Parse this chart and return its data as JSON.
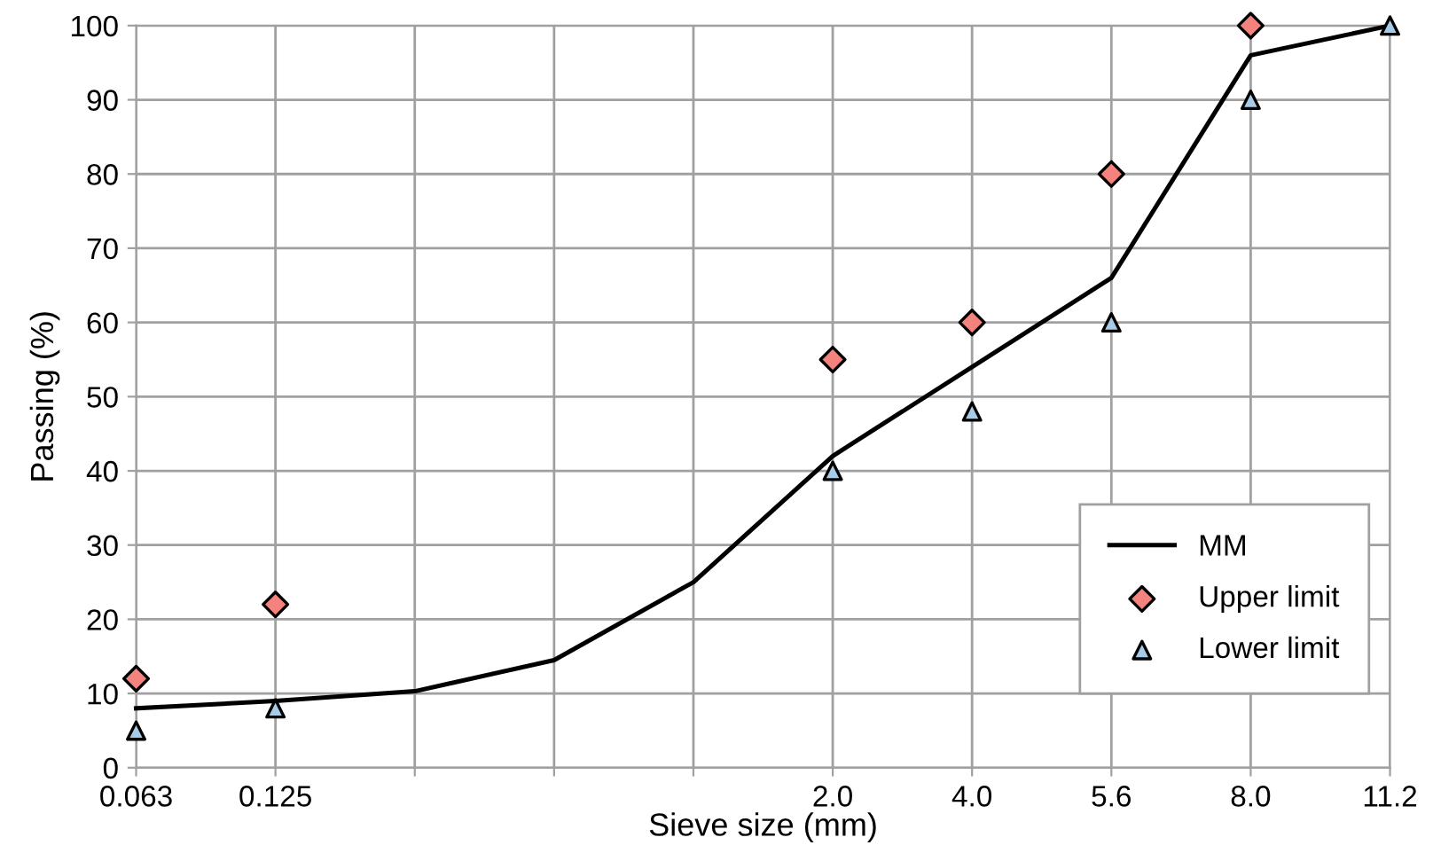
{
  "chart_data": {
    "type": "line",
    "xlabel": "Sieve size (mm)",
    "ylabel": "Passing (%)",
    "categories": [
      "0.063",
      "0.125",
      null,
      null,
      null,
      "2.0",
      "4.0",
      "5.6",
      "8.0",
      "11.2"
    ],
    "series": [
      {
        "name": "MM",
        "color": "#000000",
        "marker": "none",
        "values": [
          8,
          9,
          10.3,
          14.5,
          25,
          42,
          54,
          66,
          96,
          100
        ]
      },
      {
        "name": "Upper limit",
        "type": "scatter",
        "color": "#f4837d",
        "marker": "diamond",
        "values": [
          12,
          22,
          null,
          null,
          null,
          55,
          60,
          80,
          100,
          null
        ]
      },
      {
        "name": "Lower limit",
        "type": "scatter",
        "color": "#a8cce8",
        "marker": "triangle",
        "values": [
          5,
          8,
          null,
          null,
          null,
          40,
          48,
          60,
          90,
          100
        ]
      }
    ],
    "ylim": [
      0,
      100
    ],
    "yticks": [
      0,
      10,
      20,
      30,
      40,
      50,
      60,
      70,
      80,
      90,
      100
    ],
    "grid": true,
    "legend": "bottom right"
  }
}
